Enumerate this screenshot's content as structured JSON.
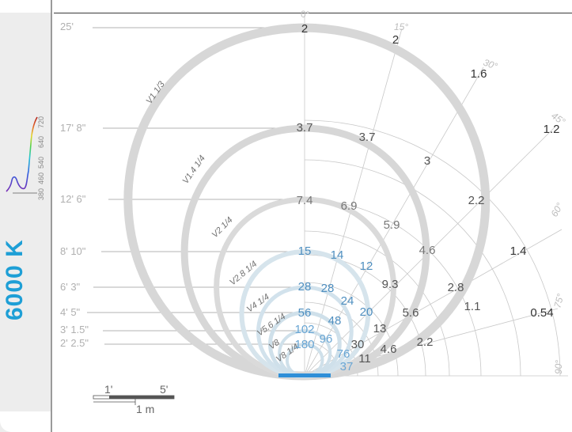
{
  "color_temperature": "6000 K",
  "spectrum_ticks": [
    "380",
    "460",
    "540",
    "640",
    "720"
  ],
  "angle_labels": [
    "0°",
    "15°",
    "30°",
    "45°",
    "60°",
    "75°",
    "90°"
  ],
  "distance_labels": [
    "25'",
    "17' 8\"",
    "12' 6\"",
    "8' 10\"",
    "6' 3\"",
    "4' 5\"",
    "3' 1.5\"",
    "2' 2.5\""
  ],
  "beam_curve_labels": [
    "V1 1/3",
    "V1.4 1/4",
    "V2 1/4",
    "V2.8 1/4",
    "V4 1/4",
    "V5.6 1/4",
    "V8",
    "V8 1/4"
  ],
  "illuminance_values": {
    "0°": [
      "2",
      "3.7",
      "7.4",
      "15",
      "28",
      "56",
      "102",
      "180"
    ],
    "15°": [
      "2",
      "3.7",
      "6.9",
      "14",
      "28",
      "48",
      "96",
      "76",
      "37"
    ],
    "30°": [
      "1.6",
      "3",
      "5.9",
      "12",
      "24",
      "20",
      "30",
      "11"
    ],
    "45°": [
      "1.2",
      "2.2",
      "4.6",
      "9.3",
      "13",
      "4.6"
    ],
    "60°": [
      "1.4",
      "2.8",
      "5.6",
      "2.2"
    ],
    "75°": [
      "0.54",
      "1.1"
    ]
  },
  "scale_bar": {
    "feet_short": "1'",
    "feet_long": "5'",
    "meter": "1 m"
  },
  "colors": {
    "accent_blue": "#1e9fd6",
    "beam_gray": "#d6d6d6",
    "beam_blue": "#cfe0ea",
    "axis_line": "#bdbdbd",
    "label_blue": "#4f8fc0"
  }
}
